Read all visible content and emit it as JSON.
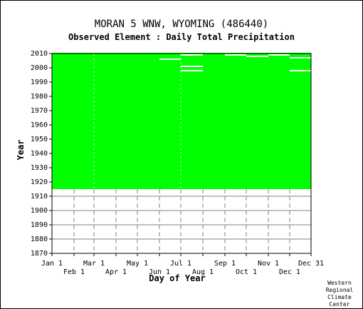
{
  "chart_data": {
    "type": "heatmap",
    "title": "MORAN 5 WNW, WYOMING   (486440)",
    "subtitle": "Observed Element : Daily Total Precipitation",
    "xlabel": "Day of Year",
    "ylabel": "Year",
    "x_ticks_upper": [
      "Jan 1",
      "Mar 1",
      "May 1",
      "Jul 1",
      "Sep 1",
      "Nov 1",
      "Dec 31"
    ],
    "x_ticks_lower": [
      "Feb 1",
      "Apr 1",
      "Jun 1",
      "Aug 1",
      "Oct 1",
      "Dec 1"
    ],
    "x_tick_days_upper": [
      1,
      60,
      121,
      182,
      244,
      305,
      365
    ],
    "x_tick_days_lower": [
      32,
      91,
      152,
      213,
      274,
      335
    ],
    "xlim": [
      1,
      365
    ],
    "y_ticks": [
      1870,
      1880,
      1890,
      1900,
      1910,
      1920,
      1930,
      1940,
      1950,
      1960,
      1970,
      1980,
      1990,
      2000,
      2010
    ],
    "ylim": [
      1870,
      2010
    ],
    "grid": true,
    "data_color": "#00ff00",
    "data_coverage": {
      "record_start_year": 1915,
      "record_end_year": 2010,
      "description_of_fill": "observed days shown in green"
    },
    "missing_segments": [
      {
        "year": 2009,
        "start_day": 182,
        "end_day": 213
      },
      {
        "year": 2009,
        "start_day": 244,
        "end_day": 274
      },
      {
        "year": 2009,
        "start_day": 305,
        "end_day": 335
      },
      {
        "year": 2008,
        "start_day": 274,
        "end_day": 305
      },
      {
        "year": 2007,
        "start_day": 335,
        "end_day": 365
      },
      {
        "year": 2006,
        "start_day": 152,
        "end_day": 182
      },
      {
        "year": 2001,
        "start_day": 182,
        "end_day": 213
      },
      {
        "year": 1998,
        "start_day": 182,
        "end_day": 213
      },
      {
        "year": 1998,
        "start_day": 335,
        "end_day": 365
      }
    ]
  },
  "footer": {
    "credit_lines": [
      "Western",
      "Regional",
      "Climate",
      "Center"
    ]
  }
}
